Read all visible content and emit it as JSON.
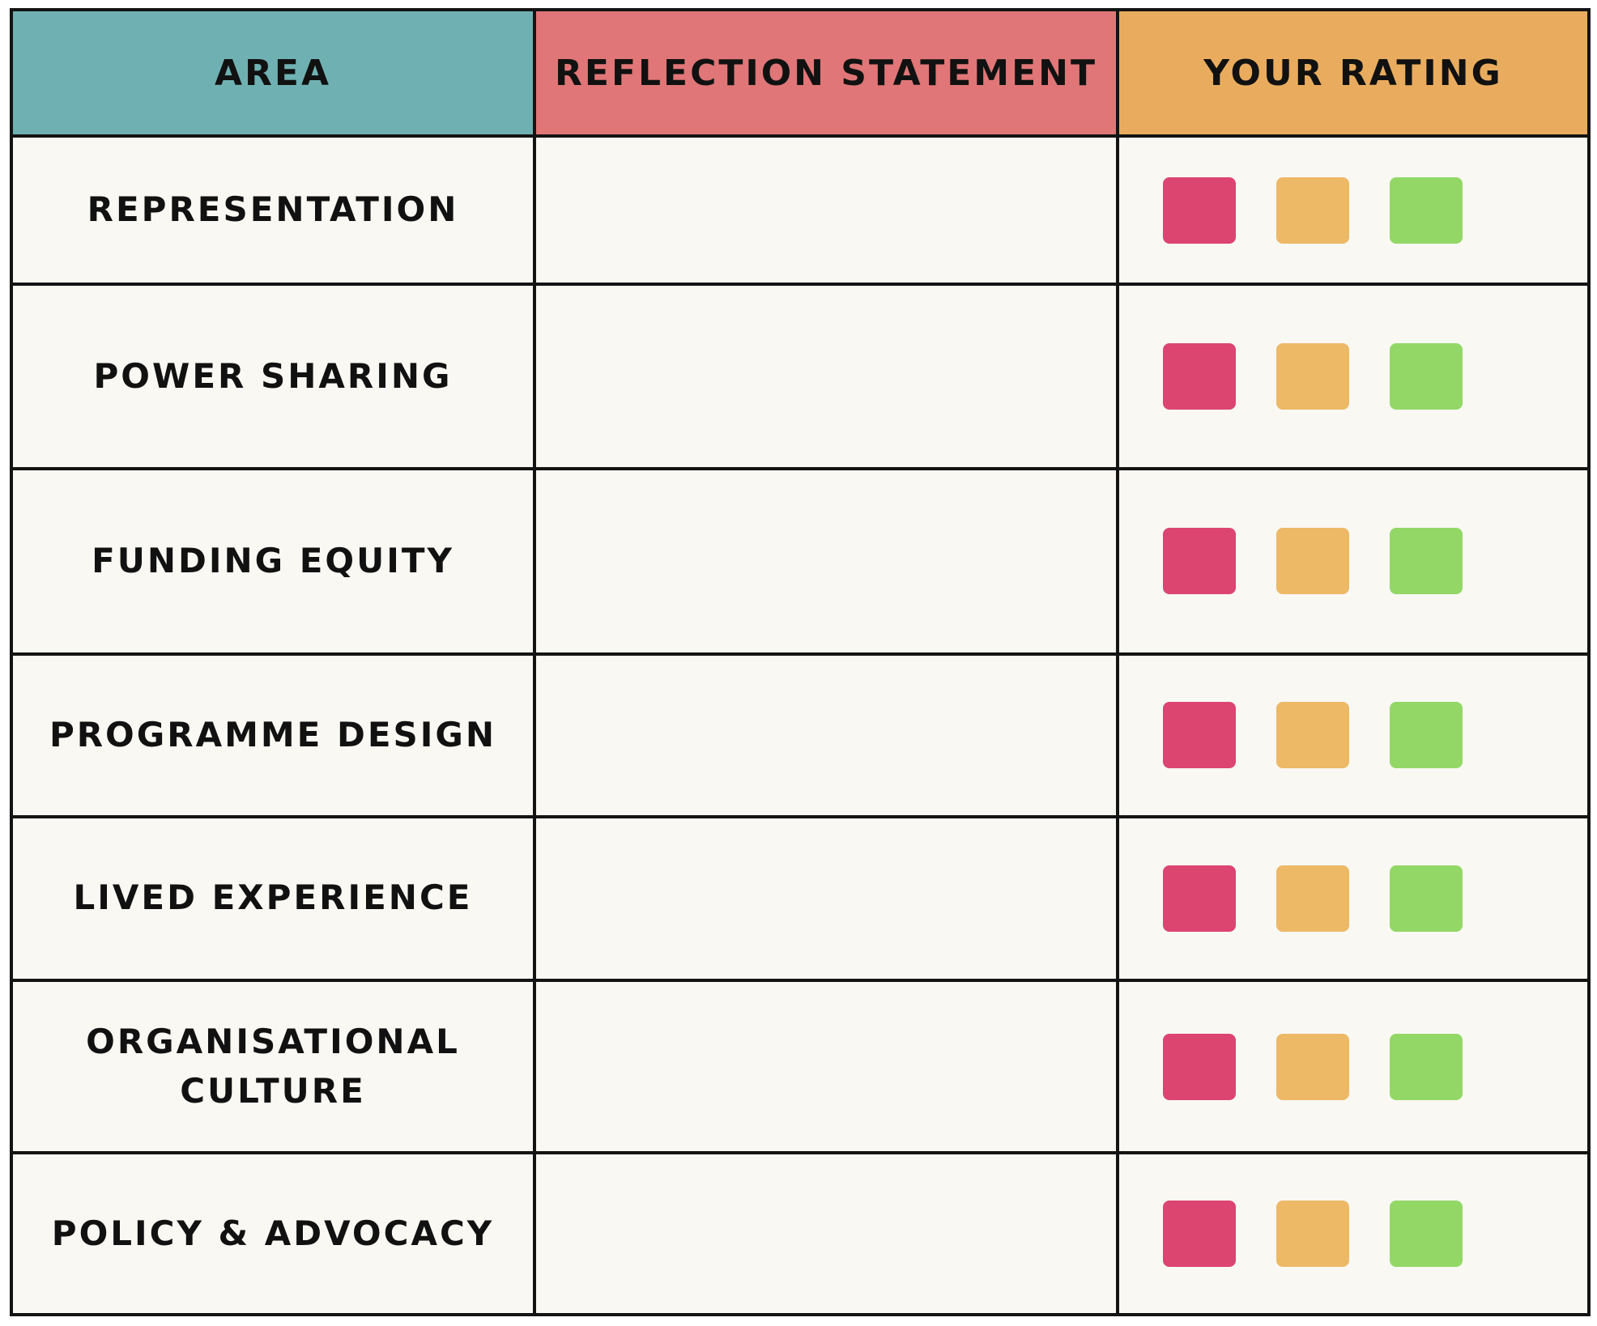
{
  "headers": {
    "area": "AREA",
    "statement": "REFLECTION STATEMENT",
    "rating": "YOUR RATING"
  },
  "header_colors": {
    "area": "#6fb1b2",
    "statement": "#e07677",
    "rating": "#e9ac5e"
  },
  "rating_colors": {
    "red": "#dc4570",
    "amber": "#edb967",
    "green": "#93d867"
  },
  "rows": [
    {
      "area": "REPRESENTATION",
      "statement": ""
    },
    {
      "area": "POWER SHARING",
      "statement": ""
    },
    {
      "area": "FUNDING EQUITY",
      "statement": ""
    },
    {
      "area": "PROGRAMME DESIGN",
      "statement": ""
    },
    {
      "area": "LIVED EXPERIENCE",
      "statement": ""
    },
    {
      "area": "ORGANISATIONAL CULTURE",
      "statement": ""
    },
    {
      "area": "POLICY & ADVOCACY",
      "statement": ""
    }
  ]
}
